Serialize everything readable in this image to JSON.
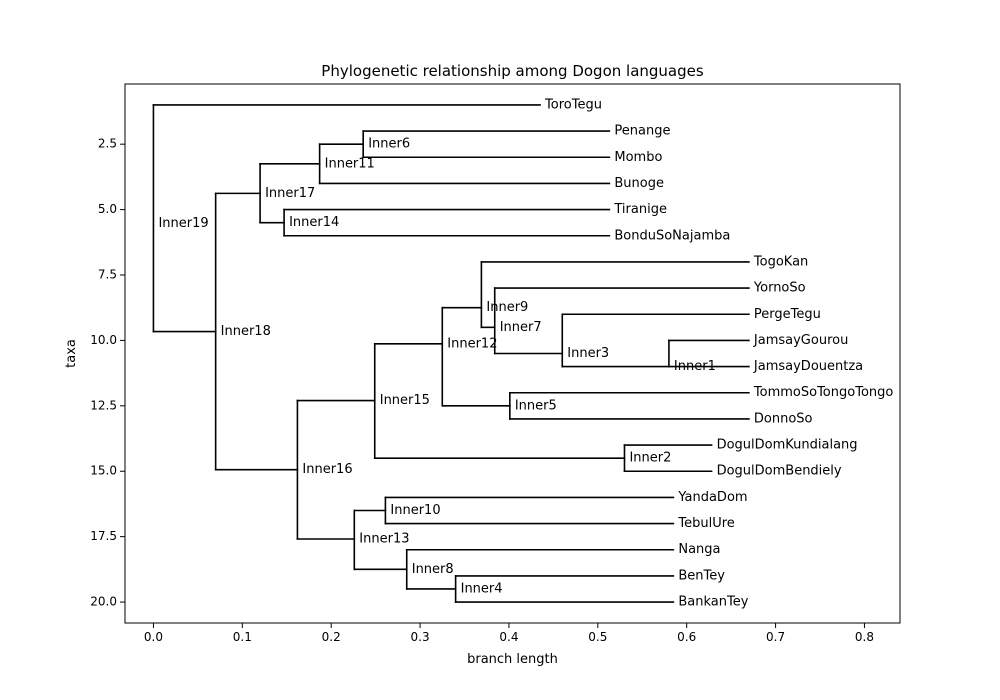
{
  "chart_data": {
    "type": "tree",
    "title": "Phylogenetic relationship among Dogon languages",
    "xlabel": "branch length",
    "ylabel": "taxa",
    "xlim": [
      -0.032,
      0.84
    ],
    "ylim": [
      20.8,
      0.2
    ],
    "x_ticks": [
      0.0,
      0.1,
      0.2,
      0.3,
      0.4,
      0.5,
      0.6,
      0.7,
      0.8
    ],
    "x_tick_labels": [
      "0.0",
      "0.1",
      "0.2",
      "0.3",
      "0.4",
      "0.5",
      "0.6",
      "0.7",
      "0.8"
    ],
    "y_ticks": [
      2.5,
      5.0,
      7.5,
      10.0,
      12.5,
      15.0,
      17.5,
      20.0
    ],
    "y_tick_labels": [
      "2.5",
      "5.0",
      "7.5",
      "10.0",
      "12.5",
      "15.0",
      "17.5",
      "20.0"
    ],
    "grid": false,
    "root": "Inner19",
    "nodes": [
      {
        "name": "Inner19",
        "x": 0.0,
        "y": 9.66,
        "leaf": false,
        "children": [
          "ToroTegu",
          "Inner18"
        ]
      },
      {
        "name": "ToroTegu",
        "x": 0.435,
        "y": 1,
        "leaf": true,
        "children": []
      },
      {
        "name": "Inner18",
        "x": 0.07,
        "y": 9.66,
        "leaf": false,
        "children": [
          "Inner17",
          "Inner16"
        ]
      },
      {
        "name": "Inner17",
        "x": 0.12,
        "y": 4.38,
        "leaf": false,
        "children": [
          "Inner11",
          "Inner14"
        ]
      },
      {
        "name": "Inner11",
        "x": 0.187,
        "y": 3.25,
        "leaf": false,
        "children": [
          "Inner6",
          "Bunoge"
        ]
      },
      {
        "name": "Inner6",
        "x": 0.236,
        "y": 2.5,
        "leaf": false,
        "children": [
          "Penange",
          "Mombo"
        ]
      },
      {
        "name": "Penange",
        "x": 0.513,
        "y": 2,
        "leaf": true,
        "children": []
      },
      {
        "name": "Mombo",
        "x": 0.513,
        "y": 3,
        "leaf": true,
        "children": []
      },
      {
        "name": "Bunoge",
        "x": 0.513,
        "y": 4,
        "leaf": true,
        "children": []
      },
      {
        "name": "Inner14",
        "x": 0.147,
        "y": 5.5,
        "leaf": false,
        "children": [
          "Tiranige",
          "BonduSoNajamba"
        ]
      },
      {
        "name": "Tiranige",
        "x": 0.513,
        "y": 5,
        "leaf": true,
        "children": []
      },
      {
        "name": "BonduSoNajamba",
        "x": 0.513,
        "y": 6,
        "leaf": true,
        "children": []
      },
      {
        "name": "Inner16",
        "x": 0.162,
        "y": 14.94,
        "leaf": false,
        "children": [
          "Inner15",
          "Inner13"
        ]
      },
      {
        "name": "Inner15",
        "x": 0.249,
        "y": 12.3,
        "leaf": false,
        "children": [
          "Inner12",
          "Inner2"
        ]
      },
      {
        "name": "Inner12",
        "x": 0.325,
        "y": 10.13,
        "leaf": false,
        "children": [
          "Inner9",
          "Inner5"
        ]
      },
      {
        "name": "Inner9",
        "x": 0.369,
        "y": 8.75,
        "leaf": false,
        "children": [
          "TogoKan",
          "Inner7"
        ]
      },
      {
        "name": "TogoKan",
        "x": 0.67,
        "y": 7,
        "leaf": true,
        "children": []
      },
      {
        "name": "Inner7",
        "x": 0.384,
        "y": 9.5,
        "leaf": false,
        "children": [
          "YornoSo",
          "Inner3"
        ]
      },
      {
        "name": "YornoSo",
        "x": 0.67,
        "y": 8,
        "leaf": true,
        "children": []
      },
      {
        "name": "Inner3",
        "x": 0.46,
        "y": 10.5,
        "leaf": false,
        "children": [
          "PergeTegu",
          "Inner1"
        ]
      },
      {
        "name": "PergeTegu",
        "x": 0.67,
        "y": 9,
        "leaf": true,
        "children": []
      },
      {
        "name": "Inner1",
        "x": 0.58,
        "y": 11,
        "leaf": false,
        "children": [
          "JamsayGourou",
          "JamsayDouentza"
        ]
      },
      {
        "name": "JamsayGourou",
        "x": 0.67,
        "y": 10,
        "leaf": true,
        "children": []
      },
      {
        "name": "JamsayDouentza",
        "x": 0.67,
        "y": 11,
        "leaf": true,
        "children": []
      },
      {
        "name": "Inner5",
        "x": 0.401,
        "y": 12.5,
        "leaf": false,
        "children": [
          "TommoSoTongoTongo",
          "DonnoSo"
        ]
      },
      {
        "name": "TommoSoTongoTongo",
        "x": 0.67,
        "y": 12,
        "leaf": true,
        "children": []
      },
      {
        "name": "DonnoSo",
        "x": 0.67,
        "y": 13,
        "leaf": true,
        "children": []
      },
      {
        "name": "Inner2",
        "x": 0.53,
        "y": 14.5,
        "leaf": false,
        "children": [
          "DogulDomKundialang",
          "DogulDomBendiely"
        ]
      },
      {
        "name": "DogulDomKundialang",
        "x": 0.628,
        "y": 14,
        "leaf": true,
        "children": []
      },
      {
        "name": "DogulDomBendiely",
        "x": 0.628,
        "y": 15,
        "leaf": true,
        "children": []
      },
      {
        "name": "Inner13",
        "x": 0.226,
        "y": 17.59,
        "leaf": false,
        "children": [
          "Inner10",
          "Inner8"
        ]
      },
      {
        "name": "Inner10",
        "x": 0.261,
        "y": 16.5,
        "leaf": false,
        "children": [
          "YandaDom",
          "TebulUre"
        ]
      },
      {
        "name": "YandaDom",
        "x": 0.585,
        "y": 16,
        "leaf": true,
        "children": []
      },
      {
        "name": "TebulUre",
        "x": 0.585,
        "y": 17,
        "leaf": true,
        "children": []
      },
      {
        "name": "Inner8",
        "x": 0.285,
        "y": 18.75,
        "leaf": false,
        "children": [
          "Nanga",
          "Inner4"
        ]
      },
      {
        "name": "Nanga",
        "x": 0.585,
        "y": 18,
        "leaf": true,
        "children": []
      },
      {
        "name": "Inner4",
        "x": 0.34,
        "y": 19.5,
        "leaf": false,
        "children": [
          "BenTey",
          "BankanTey"
        ]
      },
      {
        "name": "BenTey",
        "x": 0.585,
        "y": 19,
        "leaf": true,
        "children": []
      },
      {
        "name": "BankanTey",
        "x": 0.585,
        "y": 20,
        "leaf": true,
        "children": []
      }
    ]
  }
}
